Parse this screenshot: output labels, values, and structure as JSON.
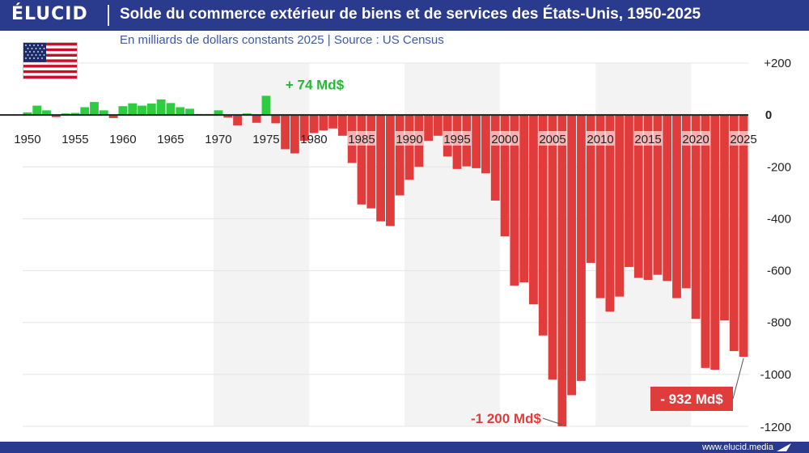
{
  "header": {
    "logo": "ÉLUCID",
    "title": "Solde du commerce extérieur de biens et de services des États-Unis, 1950-2025"
  },
  "subtitle": "En milliards de dollars constants 2025  |  Source : US Census",
  "footer": {
    "site": "www.elucid.media"
  },
  "icons": {
    "flag": "us-flag-icon",
    "footer": "elucid-arrow-icon"
  },
  "colors": {
    "header": "#2a3a8c",
    "positive": "#2ecc40",
    "negative": "#e03c3c",
    "label_positive": "#2ab53a"
  },
  "annotations": {
    "max": "+ 74 Md$",
    "min": "-1 200 Md$",
    "last": "- 932 Md$"
  },
  "chart_data": {
    "type": "bar",
    "title": "Solde du commerce extérieur de biens et de services des États-Unis, 1950-2025",
    "subtitle": "En milliards de dollars constants 2025",
    "source": "US Census",
    "ylim": [
      -1200,
      200
    ],
    "yticks": [
      200,
      0,
      -200,
      -400,
      -600,
      -800,
      -1000,
      -1200
    ],
    "ytick_labels": [
      "+200",
      "0",
      "-200",
      "-400",
      "-600",
      "-800",
      "-1000",
      "-1200"
    ],
    "xtick_labels": [
      "1950",
      "1955",
      "1960",
      "1965",
      "1970",
      "1975",
      "1980",
      "1985",
      "1990",
      "1995",
      "2000",
      "2005",
      "2010",
      "2015",
      "2020",
      "2025"
    ],
    "grid": true,
    "x_start": 1950,
    "x": [
      1950,
      1951,
      1952,
      1953,
      1954,
      1955,
      1956,
      1957,
      1958,
      1959,
      1960,
      1961,
      1962,
      1963,
      1964,
      1965,
      1966,
      1967,
      1968,
      1969,
      1970,
      1971,
      1972,
      1973,
      1974,
      1975,
      1976,
      1977,
      1978,
      1979,
      1980,
      1981,
      1982,
      1983,
      1984,
      1985,
      1986,
      1987,
      1988,
      1989,
      1990,
      1991,
      1992,
      1993,
      1994,
      1995,
      1996,
      1997,
      1998,
      1999,
      2000,
      2001,
      2002,
      2003,
      2004,
      2005,
      2006,
      2007,
      2008,
      2009,
      2010,
      2011,
      2012,
      2013,
      2014,
      2015,
      2016,
      2017,
      2018,
      2019,
      2020,
      2021,
      2022,
      2023,
      2024,
      2025
    ],
    "values": [
      10,
      36,
      18,
      -8,
      6,
      8,
      30,
      50,
      18,
      -12,
      34,
      45,
      36,
      44,
      60,
      46,
      30,
      24,
      4,
      4,
      18,
      -10,
      -40,
      6,
      -30,
      74,
      -32,
      -132,
      -148,
      -100,
      -70,
      -60,
      -52,
      -80,
      -185,
      -345,
      -360,
      -410,
      -428,
      -310,
      -250,
      -200,
      -100,
      -80,
      -160,
      -208,
      -198,
      -205,
      -225,
      -330,
      -468,
      -658,
      -645,
      -730,
      -850,
      -1020,
      -1200,
      -1080,
      -1025,
      -570,
      -706,
      -758,
      -700,
      -586,
      -628,
      -636,
      -616,
      -640,
      -706,
      -668,
      -786,
      -975,
      -982,
      -792,
      -910,
      -932
    ]
  }
}
